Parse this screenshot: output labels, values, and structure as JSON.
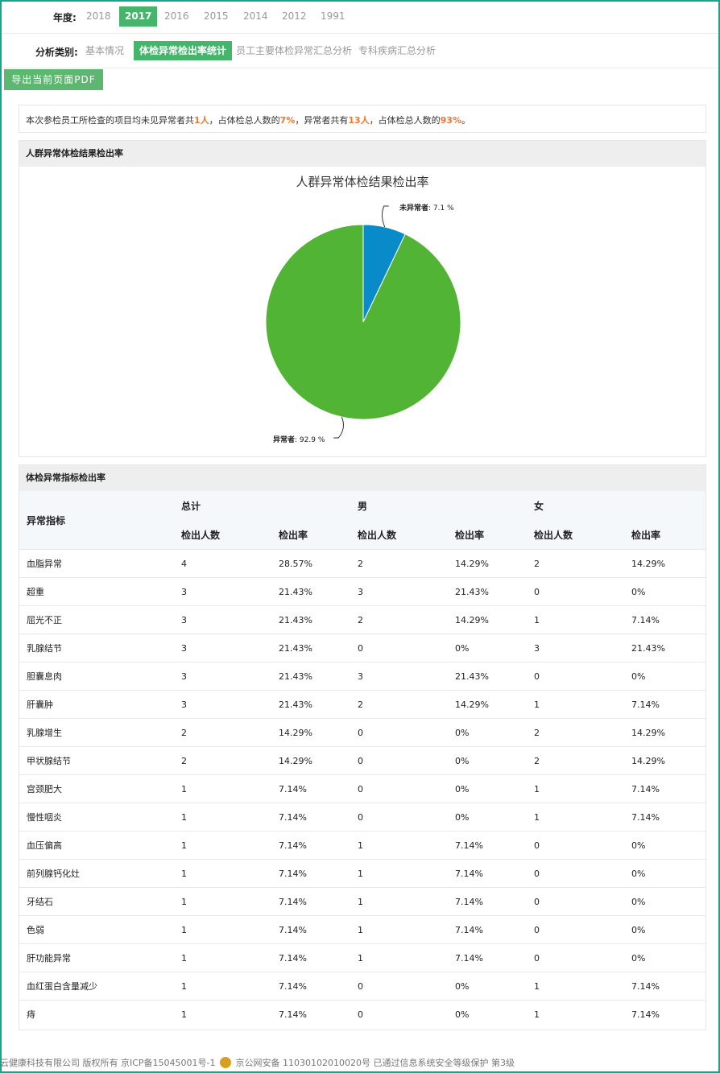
{
  "filters": {
    "year_label": "年度:",
    "years": [
      "2018",
      "2017",
      "2016",
      "2015",
      "2014",
      "2012",
      "1991"
    ],
    "active_year": "2017",
    "category_label": "分析类别:",
    "categories": [
      "基本情况",
      "体检异常检出率统计",
      "员工主要体检异常汇总分析",
      "专科疾病汇总分析"
    ],
    "active_category": "体检异常检出率统计"
  },
  "export_button": "导出当前页面PDF",
  "summary": {
    "p1": "本次参检员工所检查的项目均未见异常者共",
    "v1": "1人",
    "p2": "，占体检总人数的",
    "v2": "7%",
    "p3": "，异常者共有",
    "v3": "13人",
    "p4": "，占体检总人数的",
    "v4": "93%",
    "p5": "。"
  },
  "pie_panel": {
    "header": "人群异常体检结果检出率"
  },
  "chart_data": {
    "type": "pie",
    "title": "人群异常体检结果检出率",
    "slices": [
      {
        "name": "未异常者",
        "value": 7.1,
        "label": "7.1 %",
        "color": "#0a8bc9"
      },
      {
        "name": "异常者",
        "value": 92.9,
        "label": "92.9 %",
        "color": "#52b435"
      }
    ]
  },
  "table_panel": {
    "header": "体检异常指标检出率",
    "col_indicator": "异常指标",
    "group_total": "总计",
    "group_male": "男",
    "group_female": "女",
    "sub_count": "检出人数",
    "sub_rate": "检出率",
    "rows": [
      [
        "血脂异常",
        "4",
        "28.57%",
        "2",
        "14.29%",
        "2",
        "14.29%"
      ],
      [
        "超重",
        "3",
        "21.43%",
        "3",
        "21.43%",
        "0",
        "0%"
      ],
      [
        "屈光不正",
        "3",
        "21.43%",
        "2",
        "14.29%",
        "1",
        "7.14%"
      ],
      [
        "乳腺结节",
        "3",
        "21.43%",
        "0",
        "0%",
        "3",
        "21.43%"
      ],
      [
        "胆囊息肉",
        "3",
        "21.43%",
        "3",
        "21.43%",
        "0",
        "0%"
      ],
      [
        "肝囊肿",
        "3",
        "21.43%",
        "2",
        "14.29%",
        "1",
        "7.14%"
      ],
      [
        "乳腺增生",
        "2",
        "14.29%",
        "0",
        "0%",
        "2",
        "14.29%"
      ],
      [
        "甲状腺结节",
        "2",
        "14.29%",
        "0",
        "0%",
        "2",
        "14.29%"
      ],
      [
        "宫颈肥大",
        "1",
        "7.14%",
        "0",
        "0%",
        "1",
        "7.14%"
      ],
      [
        "慢性咽炎",
        "1",
        "7.14%",
        "0",
        "0%",
        "1",
        "7.14%"
      ],
      [
        "血压偏高",
        "1",
        "7.14%",
        "1",
        "7.14%",
        "0",
        "0%"
      ],
      [
        "前列腺钙化灶",
        "1",
        "7.14%",
        "1",
        "7.14%",
        "0",
        "0%"
      ],
      [
        "牙结石",
        "1",
        "7.14%",
        "1",
        "7.14%",
        "0",
        "0%"
      ],
      [
        "色弱",
        "1",
        "7.14%",
        "1",
        "7.14%",
        "0",
        "0%"
      ],
      [
        "肝功能异常",
        "1",
        "7.14%",
        "1",
        "7.14%",
        "0",
        "0%"
      ],
      [
        "血红蛋白含量减少",
        "1",
        "7.14%",
        "0",
        "0%",
        "1",
        "7.14%"
      ],
      [
        "痔",
        "1",
        "7.14%",
        "0",
        "0%",
        "1",
        "7.14%"
      ]
    ]
  },
  "footer": {
    "left": "云健康科技有限公司 版权所有 京ICP备15045001号-1",
    "badge_icon": "police-badge-icon",
    "right": "京公网安备 11030102010020号 已通过信息系统安全等级保护 第3级"
  }
}
